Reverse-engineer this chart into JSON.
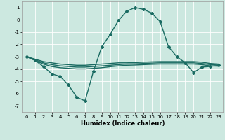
{
  "xlabel": "Humidex (Indice chaleur)",
  "background_color": "#cce8e0",
  "grid_color": "#ffffff",
  "line_color": "#1a6b62",
  "xlim": [
    -0.5,
    23.5
  ],
  "ylim": [
    -7.5,
    1.5
  ],
  "yticks": [
    1,
    0,
    -1,
    -2,
    -3,
    -4,
    -5,
    -6,
    -7
  ],
  "xticks": [
    0,
    1,
    2,
    3,
    4,
    5,
    6,
    7,
    8,
    9,
    10,
    11,
    12,
    13,
    14,
    15,
    16,
    17,
    18,
    19,
    20,
    21,
    22,
    23
  ],
  "series": [
    {
      "x": [
        0,
        1,
        2,
        3,
        4,
        5,
        6,
        7,
        8,
        9,
        10,
        11,
        12,
        13,
        14,
        15,
        16,
        17,
        18,
        19,
        20,
        21,
        22,
        23
      ],
      "y": [
        -3.0,
        -3.3,
        -3.8,
        -4.4,
        -4.6,
        -5.3,
        -6.3,
        -6.6,
        -4.2,
        -2.2,
        -1.2,
        -0.05,
        0.7,
        1.0,
        0.85,
        0.55,
        -0.15,
        -2.2,
        -3.0,
        -3.5,
        -4.3,
        -3.85,
        -3.8,
        -3.7
      ],
      "marker": "D",
      "markersize": 2.0,
      "linewidth": 1.0
    },
    {
      "x": [
        0,
        1,
        2,
        3,
        4,
        5,
        6,
        7,
        8,
        9,
        10,
        11,
        12,
        13,
        14,
        15,
        16,
        17,
        18,
        19,
        20,
        21,
        22,
        23
      ],
      "y": [
        -3.0,
        -3.2,
        -3.4,
        -3.5,
        -3.6,
        -3.65,
        -3.7,
        -3.7,
        -3.65,
        -3.6,
        -3.55,
        -3.5,
        -3.5,
        -3.48,
        -3.45,
        -3.42,
        -3.4,
        -3.4,
        -3.4,
        -3.4,
        -3.4,
        -3.45,
        -3.55,
        -3.6
      ],
      "marker": null,
      "linewidth": 1.0
    },
    {
      "x": [
        0,
        1,
        2,
        3,
        4,
        5,
        6,
        7,
        8,
        9,
        10,
        11,
        12,
        13,
        14,
        15,
        16,
        17,
        18,
        19,
        20,
        21,
        22,
        23
      ],
      "y": [
        -3.0,
        -3.25,
        -3.5,
        -3.65,
        -3.75,
        -3.8,
        -3.85,
        -3.85,
        -3.8,
        -3.75,
        -3.7,
        -3.65,
        -3.6,
        -3.58,
        -3.55,
        -3.52,
        -3.5,
        -3.5,
        -3.5,
        -3.5,
        -3.5,
        -3.55,
        -3.65,
        -3.68
      ],
      "marker": null,
      "linewidth": 1.0
    },
    {
      "x": [
        0,
        1,
        2,
        3,
        4,
        5,
        6,
        7,
        8,
        9,
        10,
        11,
        12,
        13,
        14,
        15,
        16,
        17,
        18,
        19,
        20,
        21,
        22,
        23
      ],
      "y": [
        -3.0,
        -3.3,
        -3.6,
        -3.8,
        -3.9,
        -3.95,
        -4.0,
        -4.0,
        -3.95,
        -3.9,
        -3.82,
        -3.75,
        -3.7,
        -3.68,
        -3.65,
        -3.62,
        -3.6,
        -3.6,
        -3.6,
        -3.6,
        -3.6,
        -3.65,
        -3.75,
        -3.78
      ],
      "marker": null,
      "linewidth": 1.0
    }
  ]
}
